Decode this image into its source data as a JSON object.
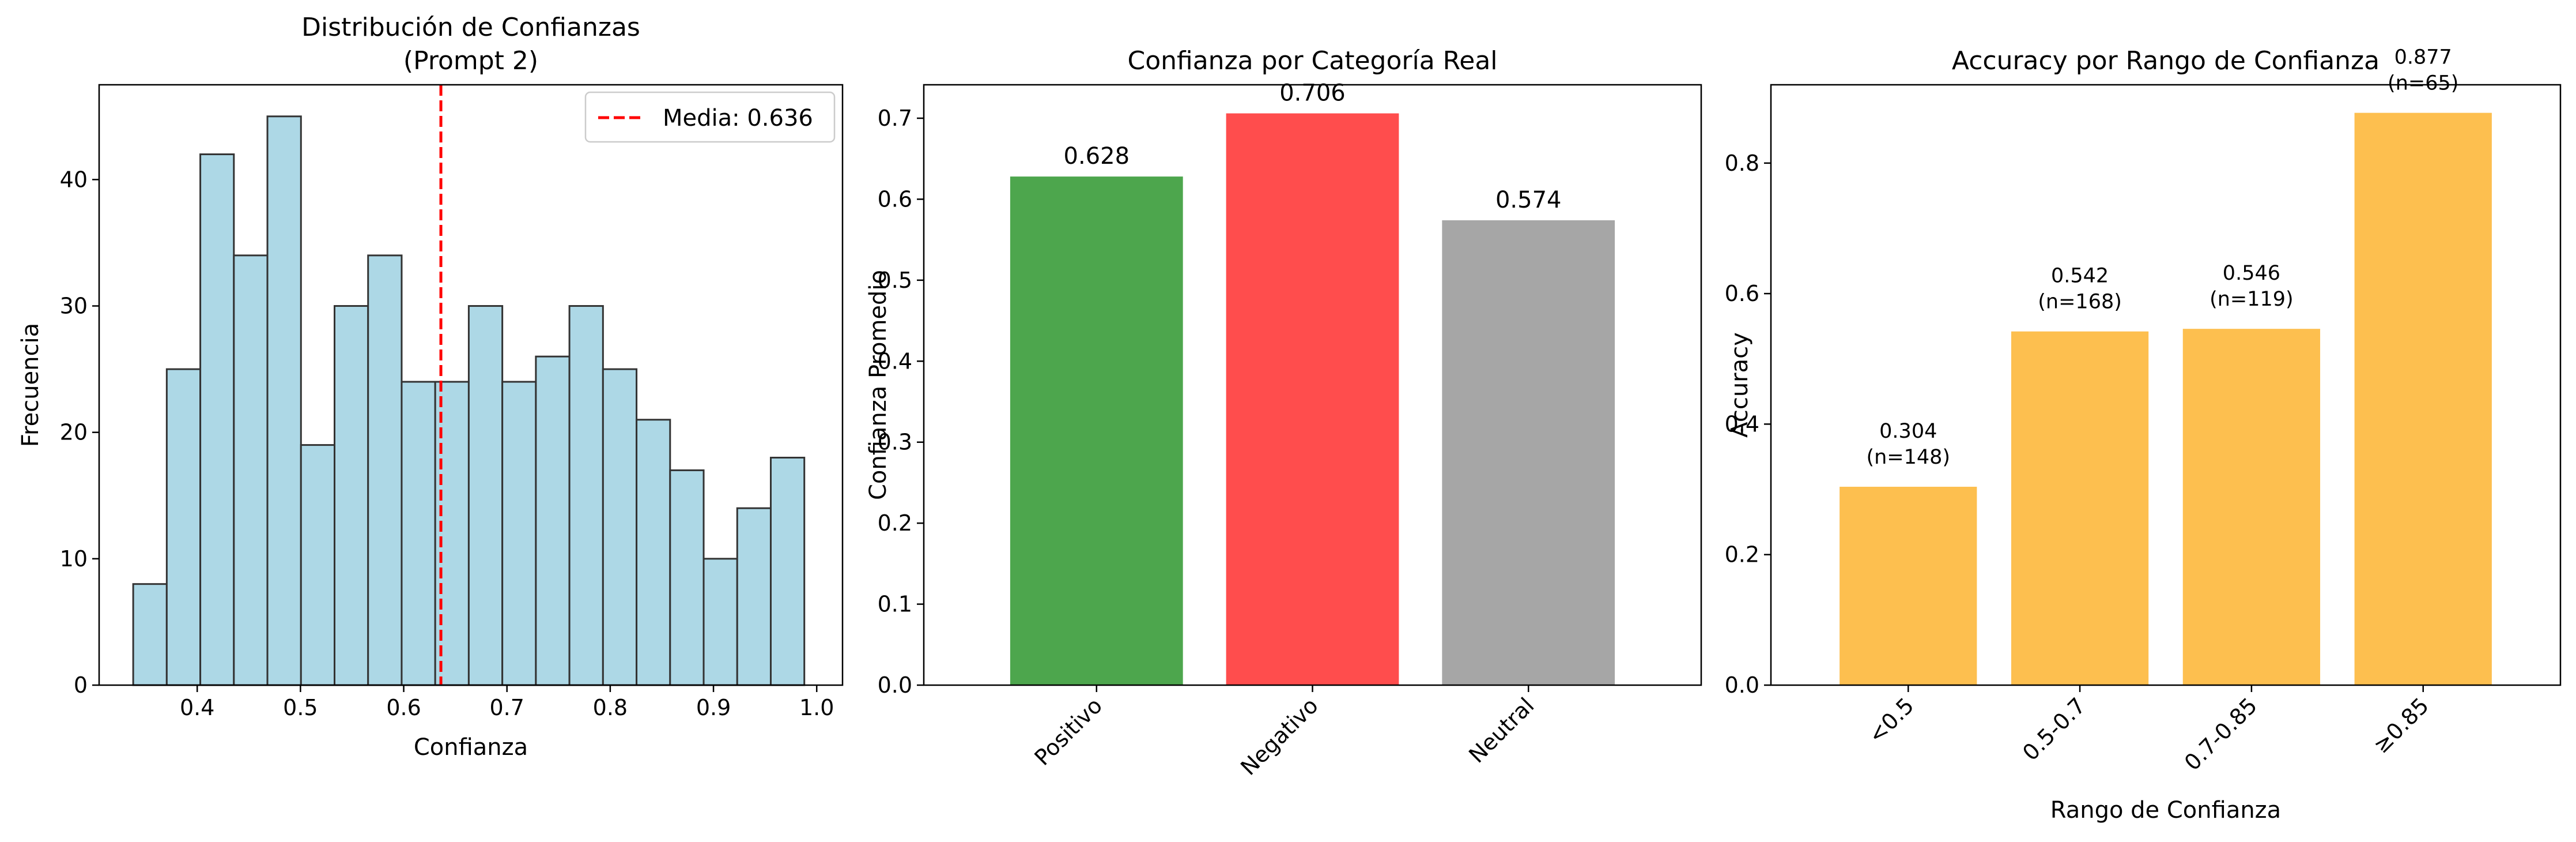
{
  "chart_data": [
    {
      "type": "bar",
      "title": "Distribución de Confianzas\n(Prompt 2)",
      "xlabel": "Confianza",
      "ylabel": "Frecuencia",
      "xlim": [
        0.305,
        1.025
      ],
      "ylim": [
        0,
        47.5
      ],
      "xticks": [
        0.4,
        0.5,
        0.6,
        0.7,
        0.8,
        0.9,
        1.0
      ],
      "xtick_labels": [
        "0.4",
        "0.5",
        "0.6",
        "0.7",
        "0.8",
        "0.9",
        "1.0"
      ],
      "yticks": [
        0,
        10,
        20,
        30,
        40
      ],
      "bin_edges": [
        0.338,
        0.3705,
        0.403,
        0.4355,
        0.468,
        0.5005,
        0.533,
        0.5655,
        0.598,
        0.6305,
        0.663,
        0.6955,
        0.728,
        0.7605,
        0.793,
        0.8255,
        0.858,
        0.8905,
        0.923,
        0.9555,
        0.988
      ],
      "values": [
        8,
        25,
        42,
        34,
        45,
        19,
        30,
        34,
        24,
        24,
        30,
        24,
        26,
        30,
        25,
        21,
        17,
        10,
        14,
        18
      ],
      "bar_color": "#add8e6",
      "edge_color": "#333333",
      "mean_line": {
        "x": 0.636,
        "color": "#ff0000",
        "style": "dashed",
        "label": "Media: 0.636"
      },
      "legend": "top-right",
      "grid": false
    },
    {
      "type": "bar",
      "title": "Confianza por Categoría Real",
      "xlabel": "",
      "ylabel": "Confianza Promedio",
      "ylim": [
        0,
        0.7413
      ],
      "yticks": [
        0.0,
        0.1,
        0.2,
        0.3,
        0.4,
        0.5,
        0.6,
        0.7
      ],
      "categories": [
        "Positivo",
        "Negativo",
        "Neutral"
      ],
      "values": [
        0.628,
        0.706,
        0.574
      ],
      "value_labels": [
        "0.628",
        "0.706",
        "0.574"
      ],
      "colors": [
        "#4da64d",
        "#ff4d4d",
        "#a6a6a6"
      ],
      "xtick_rotation": 45,
      "grid": false
    },
    {
      "type": "bar",
      "title": "Accuracy por Rango de Confianza",
      "xlabel": "Rango de Confianza",
      "ylabel": "Accuracy",
      "ylim": [
        0,
        0.92
      ],
      "yticks": [
        0.0,
        0.2,
        0.4,
        0.6,
        0.8
      ],
      "categories": [
        "<0.5",
        "0.5-0.7",
        "0.7-0.85",
        "≥0.85"
      ],
      "values": [
        0.304,
        0.542,
        0.546,
        0.877
      ],
      "value_labels": [
        "0.304",
        "0.542",
        "0.546",
        "0.877"
      ],
      "counts": [
        "(n=148)",
        "(n=168)",
        "(n=119)",
        "(n=65)"
      ],
      "color": "#fdbf4f",
      "xtick_rotation": 45,
      "grid": false
    }
  ]
}
